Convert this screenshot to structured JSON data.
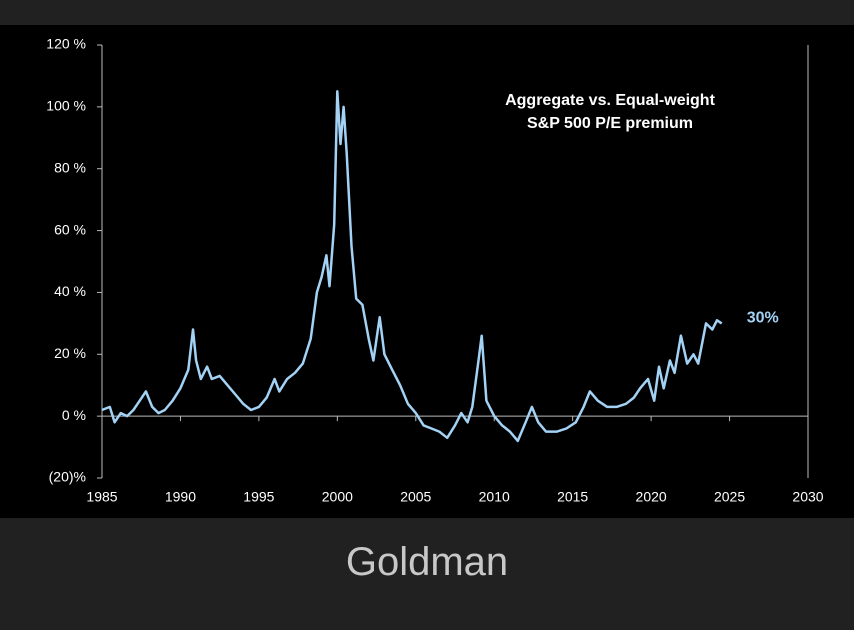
{
  "chart_data": {
    "type": "line",
    "title": [
      "Aggregate vs. Equal-weight",
      "S&P 500 P/E premium"
    ],
    "annotation": "30%",
    "color": "#a3d2f5",
    "x": [
      1985.0,
      1985.5,
      1985.8,
      1986.2,
      1986.6,
      1987.0,
      1987.4,
      1987.8,
      1988.2,
      1988.6,
      1989.0,
      1989.5,
      1990.0,
      1990.5,
      1990.8,
      1991.0,
      1991.3,
      1991.7,
      1992.0,
      1992.5,
      1993.0,
      1993.5,
      1994.0,
      1994.5,
      1995.0,
      1995.5,
      1996.0,
      1996.3,
      1996.8,
      1997.3,
      1997.8,
      1998.3,
      1998.7,
      1999.0,
      1999.3,
      1999.5,
      1999.8,
      2000.0,
      2000.2,
      2000.4,
      2000.6,
      2000.9,
      2001.2,
      2001.6,
      2002.0,
      2002.3,
      2002.7,
      2003.0,
      2003.5,
      2004.0,
      2004.5,
      2005.0,
      2005.5,
      2006.0,
      2006.5,
      2007.0,
      2007.5,
      2007.9,
      2008.3,
      2008.6,
      2009.0,
      2009.2,
      2009.5,
      2010.0,
      2010.5,
      2011.0,
      2011.5,
      2012.0,
      2012.4,
      2012.8,
      2013.3,
      2014.0,
      2014.6,
      2015.2,
      2015.7,
      2016.1,
      2016.6,
      2017.2,
      2017.8,
      2018.4,
      2018.9,
      2019.3,
      2019.8,
      2020.2,
      2020.5,
      2020.8,
      2021.2,
      2021.5,
      2021.9,
      2022.3,
      2022.7,
      2023.0,
      2023.5,
      2023.9,
      2024.2,
      2024.5
    ],
    "values": [
      2,
      3,
      -2,
      1,
      0,
      2,
      5,
      8,
      3,
      1,
      2,
      5,
      9,
      15,
      28,
      18,
      12,
      16,
      12,
      13,
      10,
      7,
      4,
      2,
      3,
      6,
      12,
      8,
      12,
      14,
      17,
      25,
      40,
      45,
      52,
      42,
      62,
      105,
      88,
      100,
      85,
      55,
      38,
      36,
      25,
      18,
      32,
      20,
      15,
      10,
      4,
      1,
      -3,
      -4,
      -5,
      -7,
      -3,
      1,
      -2,
      3,
      18,
      26,
      5,
      0,
      -3,
      -5,
      -8,
      -2,
      3,
      -2,
      -5,
      -5,
      -4,
      -2,
      3,
      8,
      5,
      3,
      3,
      4,
      6,
      9,
      12,
      5,
      16,
      9,
      18,
      14,
      26,
      17,
      20,
      17,
      30,
      28,
      31,
      30
    ],
    "xlim": [
      1985,
      2030
    ],
    "xticks": [
      1985,
      1990,
      1995,
      2000,
      2005,
      2010,
      2015,
      2020,
      2025,
      2030
    ],
    "ylim": [
      -20,
      120
    ],
    "yticks": [
      {
        "value": -20,
        "label": "(20)%"
      },
      {
        "value": 0,
        "label": "0 %"
      },
      {
        "value": 20,
        "label": "20 %"
      },
      {
        "value": 40,
        "label": "40 %"
      },
      {
        "value": 60,
        "label": "60 %"
      },
      {
        "value": 80,
        "label": "80 %"
      },
      {
        "value": 100,
        "label": "100 %"
      },
      {
        "value": 120,
        "label": "120 %"
      }
    ],
    "grid": false
  },
  "caption": "Goldman"
}
